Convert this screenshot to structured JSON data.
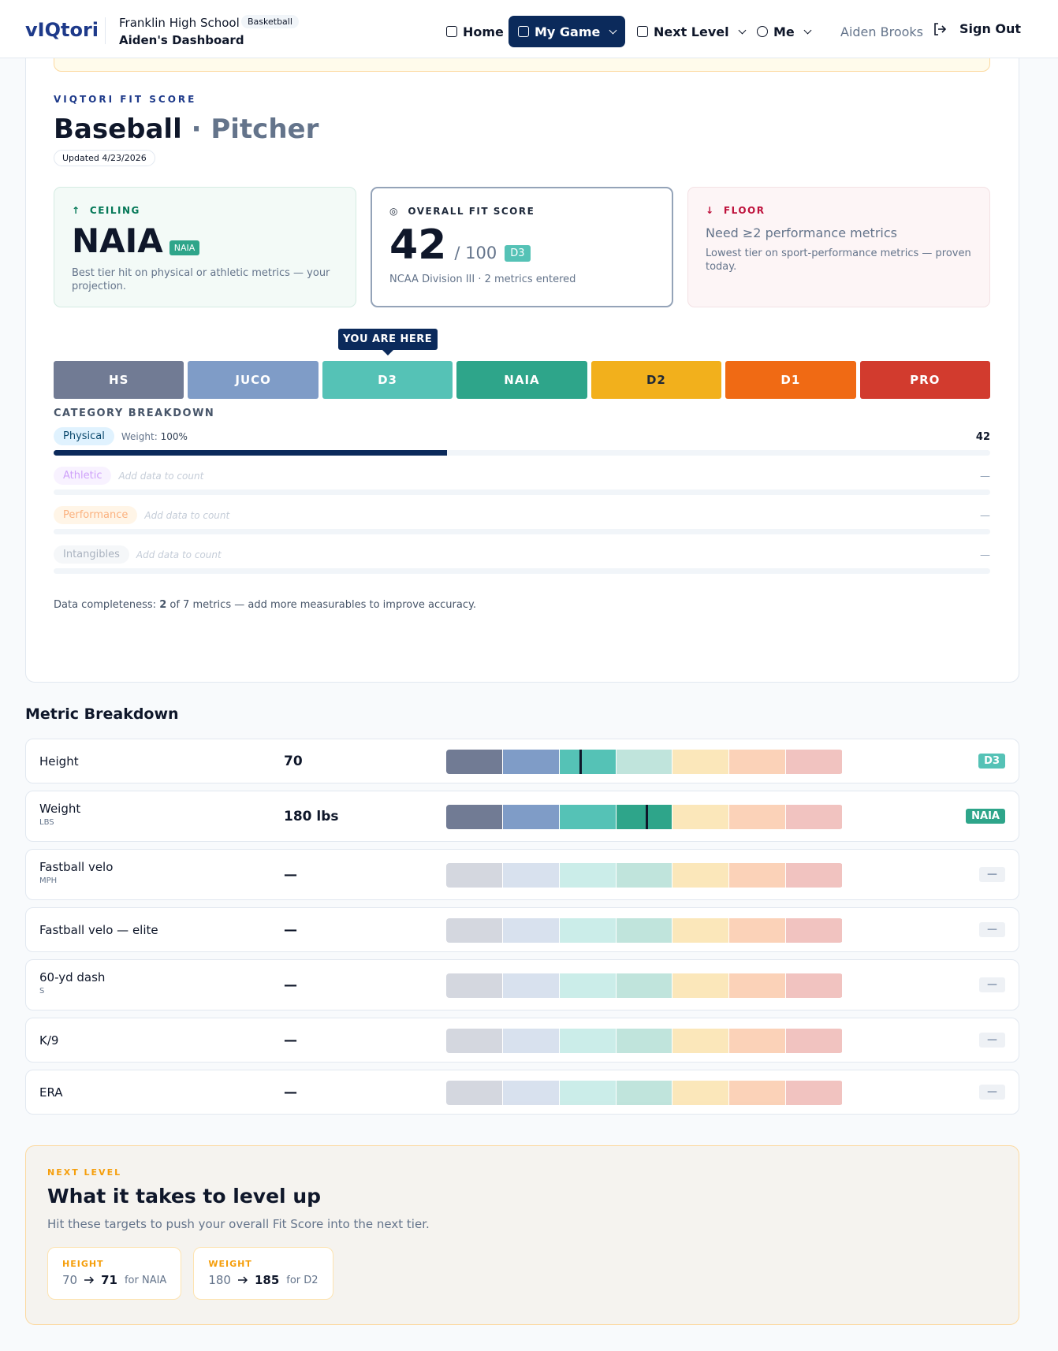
{
  "header": {
    "logo": "vIQtori",
    "school": "Franklin High School",
    "sport_badge": "Basketball",
    "dashboard": "Aiden's Dashboard",
    "nav": [
      "Home",
      "My Game",
      "Next Level",
      "Me"
    ],
    "active_nav": "My Game",
    "user": "Aiden Brooks",
    "sign_out": "Sign Out"
  },
  "fit": {
    "eyebrow": "VIQTORI FIT SCORE",
    "sport": "Baseball",
    "separator": "·",
    "position": "Pitcher",
    "updated": "Updated 4/23/2026",
    "ceiling": {
      "label": "CEILING",
      "value": "NAIA",
      "badge": "NAIA",
      "note": "Best tier hit on physical or athletic metrics — your projection."
    },
    "overall": {
      "label": "OVERALL FIT SCORE",
      "score": 42,
      "out_of": "/ 100",
      "badge": "D3",
      "note": "NCAA Division III · 2 metrics entered"
    },
    "floor": {
      "label": "FLOOR",
      "headline": "Need ≥2 performance metrics",
      "note": "Lowest tier on sport-performance metrics — proven today."
    },
    "marker": "YOU ARE HERE",
    "tiers": [
      {
        "name": "HS",
        "color": "#717b94"
      },
      {
        "name": "JUCO",
        "color": "#7f9cc7"
      },
      {
        "name": "D3",
        "color": "#55c2b6"
      },
      {
        "name": "NAIA",
        "color": "#2ea58a"
      },
      {
        "name": "D2",
        "color": "#f2b01c"
      },
      {
        "name": "D1",
        "color": "#f06a14"
      },
      {
        "name": "PRO",
        "color": "#d23b2e"
      }
    ],
    "category_title": "CATEGORY BREAKDOWN",
    "categories": [
      {
        "name": "Physical",
        "weight_label": "Weight:",
        "weight": "100%",
        "score": 42
      },
      {
        "name": "Athletic",
        "note": "Add data to count",
        "score": "—"
      },
      {
        "name": "Performance",
        "note": "Add data to count",
        "score": "—"
      },
      {
        "name": "Intangibles",
        "note": "Add data to count",
        "score": "—"
      }
    ],
    "completeness": {
      "prefix": "Data completeness:",
      "count": 2,
      "suffix": "of 7 metrics — add more measurables to improve accuracy."
    }
  },
  "metrics_title": "Metric Breakdown",
  "metrics": [
    {
      "name": "Height",
      "value": 70,
      "tier": "D3",
      "position": 2.36
    },
    {
      "name": "Weight",
      "unit": "LBS",
      "value": 180,
      "value_label": "180 lbs",
      "tier": "NAIA",
      "position": 3.53
    },
    {
      "name": "Fastball velo",
      "unit": "MPH",
      "value": null,
      "value_label": "—",
      "tier": "—"
    },
    {
      "name": "Fastball velo — elite",
      "value": null,
      "value_label": "—",
      "tier": "—"
    },
    {
      "name": "60-yd dash",
      "unit": "S",
      "value": null,
      "value_label": "—",
      "tier": "—"
    },
    {
      "name": "K/9",
      "value": null,
      "value_label": "—",
      "tier": "—"
    },
    {
      "name": "ERA",
      "value": null,
      "value_label": "—",
      "tier": "—"
    }
  ],
  "next_level": {
    "eyebrow": "NEXT LEVEL",
    "title": "What it takes to level up",
    "subtitle": "Hit these targets to push your overall Fit Score into the next tier.",
    "targets": [
      {
        "label": "HEIGHT",
        "from": 70,
        "to": 71,
        "for": "for NAIA"
      },
      {
        "label": "WEIGHT",
        "from": 180,
        "to": 185,
        "for": "for D2"
      }
    ]
  }
}
